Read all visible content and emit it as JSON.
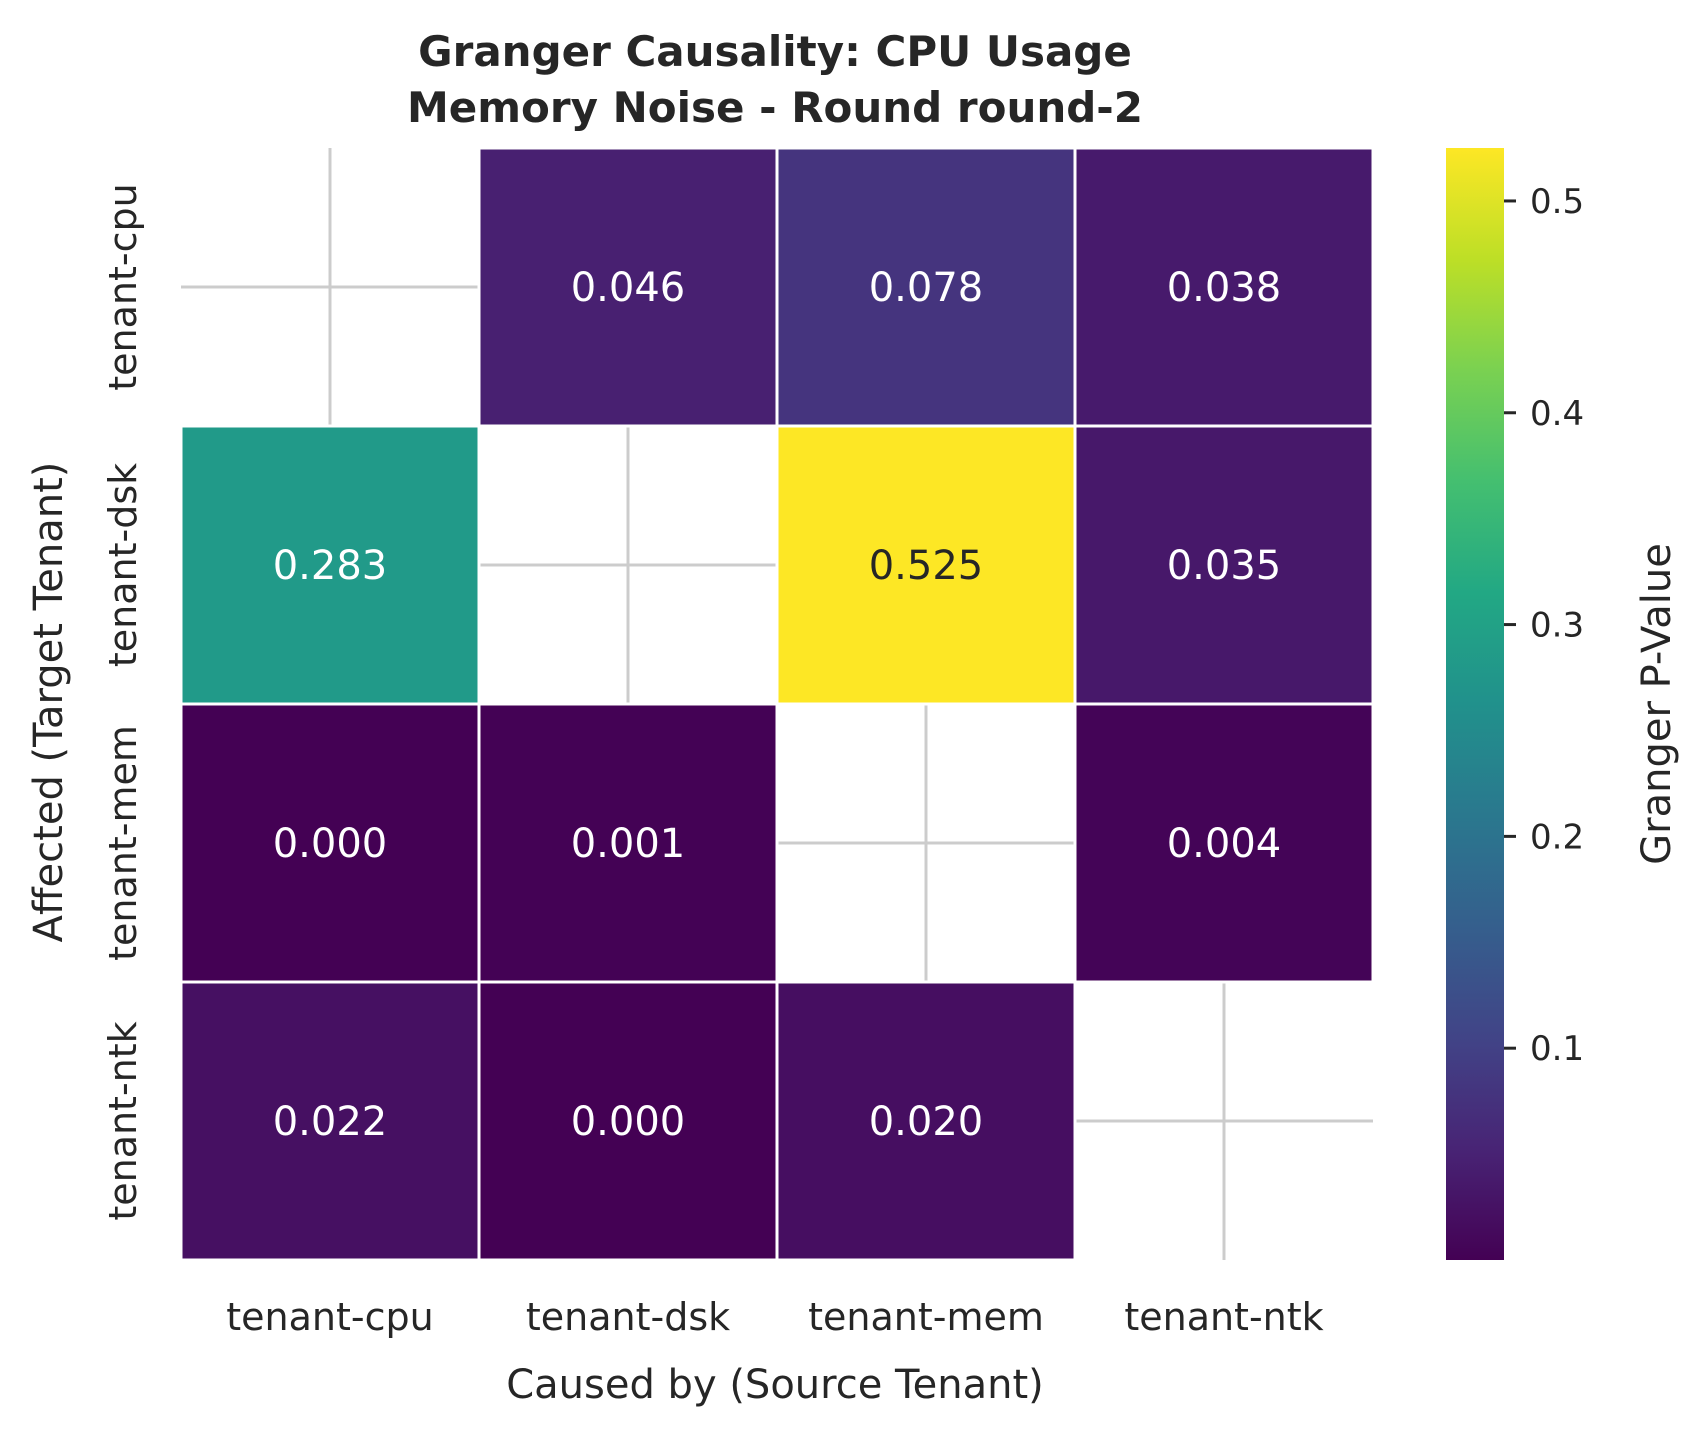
{
  "chart_data": {
    "type": "heatmap",
    "title": [
      "Granger Causality: CPU Usage",
      "Memory Noise - Round round-2"
    ],
    "xlabel": "Caused by (Source Tenant)",
    "ylabel": "Affected (Target Tenant)",
    "x_categories": [
      "tenant-cpu",
      "tenant-dsk",
      "tenant-mem",
      "tenant-ntk"
    ],
    "y_categories": [
      "tenant-cpu",
      "tenant-dsk",
      "tenant-mem",
      "tenant-ntk"
    ],
    "values": [
      [
        null,
        0.046,
        0.078,
        0.038
      ],
      [
        0.283,
        null,
        0.525,
        0.035
      ],
      [
        0.0,
        0.001,
        null,
        0.004
      ],
      [
        0.022,
        0.0,
        0.02,
        null
      ]
    ],
    "value_labels": [
      [
        "",
        "0.046",
        "0.078",
        "0.038"
      ],
      [
        "0.283",
        "",
        "0.525",
        "0.035"
      ],
      [
        "0.000",
        "0.001",
        "",
        "0.004"
      ],
      [
        "0.022",
        "0.000",
        "0.020",
        ""
      ]
    ],
    "colormap": "viridis",
    "colorbar": {
      "label": "Granger P-Value",
      "range": [
        0.0,
        0.525
      ],
      "ticks": [
        0.1,
        0.2,
        0.3,
        0.4,
        0.5
      ],
      "tick_labels": [
        "0.1",
        "0.2",
        "0.3",
        "0.4",
        "0.5"
      ]
    },
    "grid": true
  }
}
